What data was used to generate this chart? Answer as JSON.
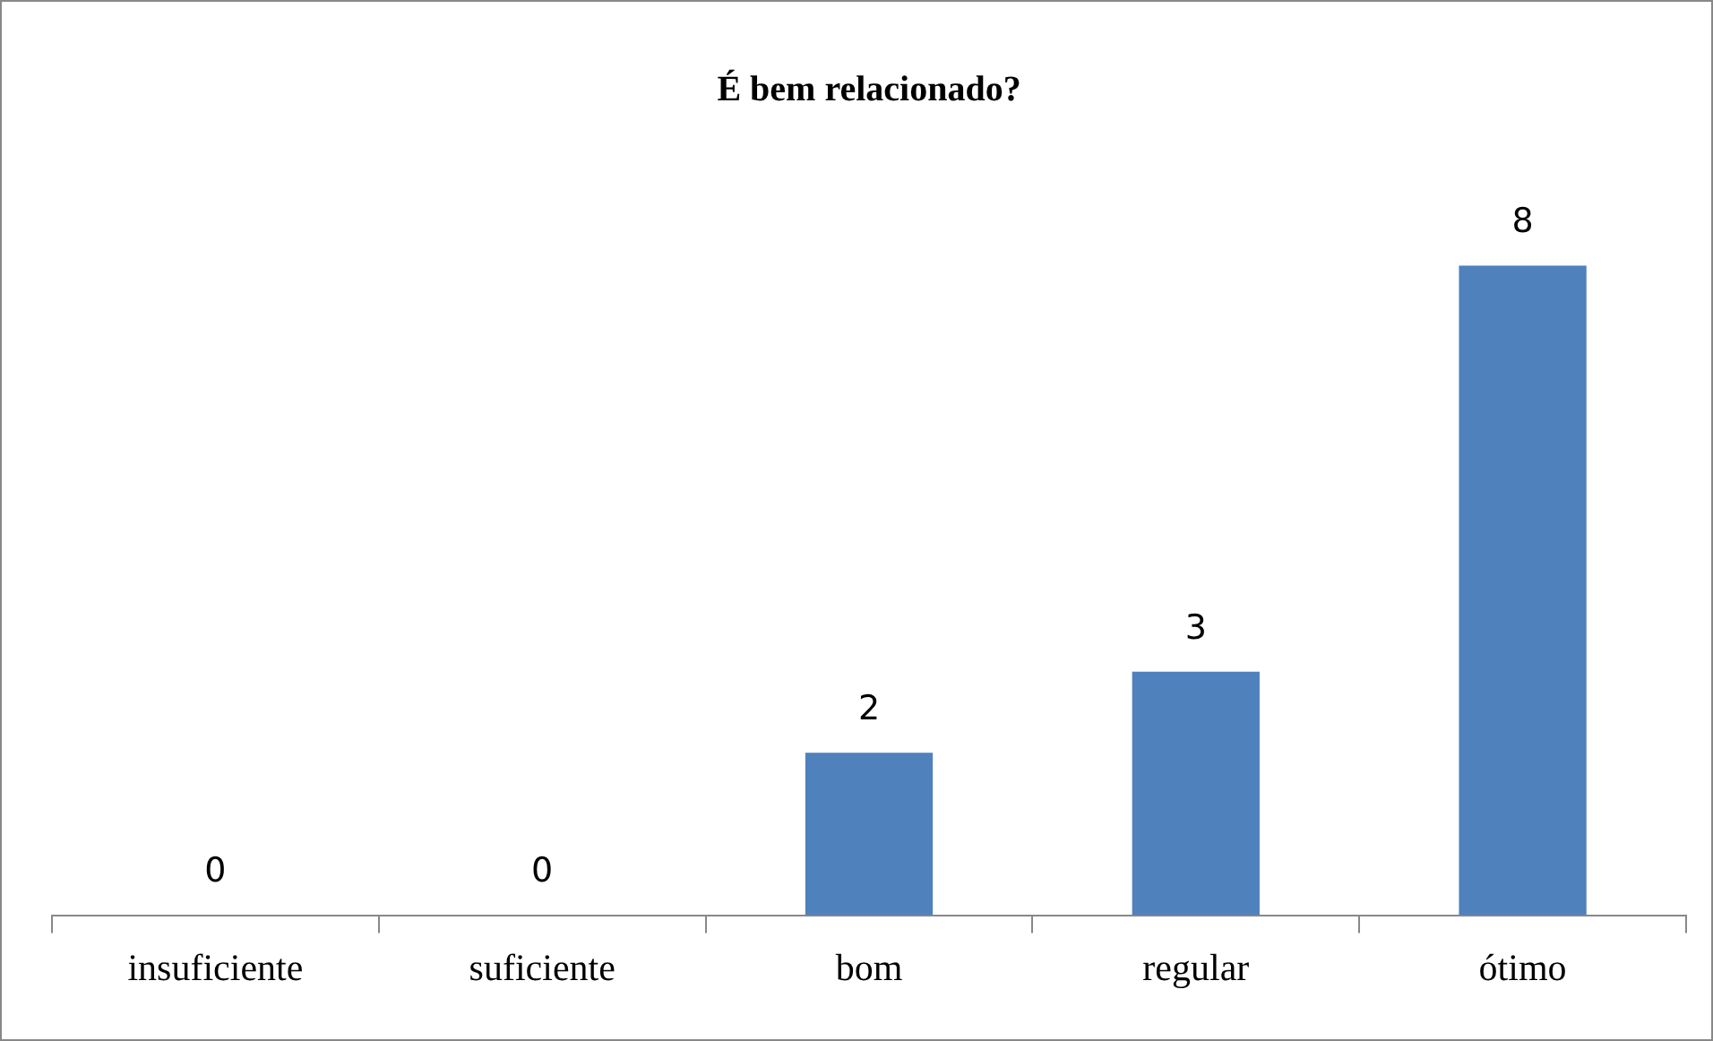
{
  "chart_data": {
    "type": "bar",
    "title": "É bem relacionado?",
    "categories": [
      "insuficiente",
      "suficiente",
      "bom",
      "regular",
      "ótimo"
    ],
    "values": [
      0,
      0,
      2,
      3,
      8
    ],
    "color": "#4f81bd",
    "data_labels": true,
    "legend": false,
    "grid": false
  }
}
